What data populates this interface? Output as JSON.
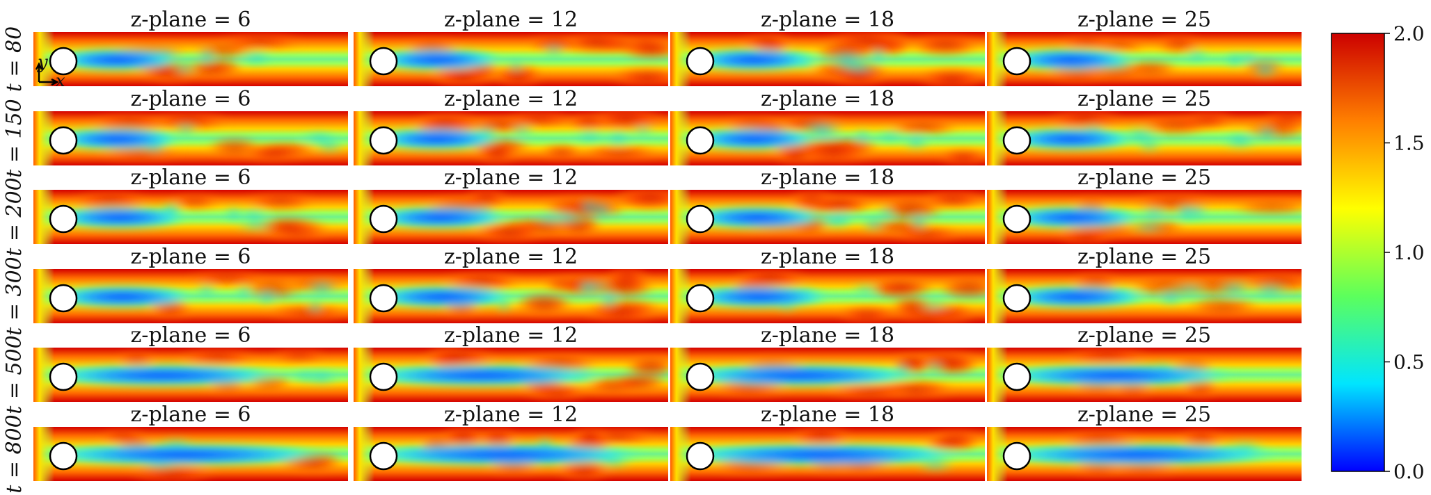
{
  "chart_data": {
    "type": "heatmap",
    "description_fields": "grid of flow-field snapshots (velocity magnitude) around a cylinder",
    "plane_labels": [
      "z-plane = 6",
      "z-plane = 12",
      "z-plane = 18",
      "z-plane = 25"
    ],
    "time_labels": [
      "t = 80",
      "t = 150",
      "t = 200",
      "t = 300",
      "t = 500",
      "t = 800"
    ],
    "axis_glyphs": {
      "x": "x",
      "y": "y"
    },
    "colorbar": {
      "range": [
        0.0,
        2.0
      ],
      "ticks": [
        "0.0",
        "0.5",
        "1.0",
        "1.5",
        "2.0"
      ],
      "tick_values": [
        0.0,
        0.5,
        1.0,
        1.5,
        2.0
      ],
      "colormap": "jet",
      "colors": [
        "#0000ff",
        "#00e5ff",
        "#5cff5c",
        "#ffff00",
        "#ff7f00",
        "#cc0000"
      ]
    }
  }
}
